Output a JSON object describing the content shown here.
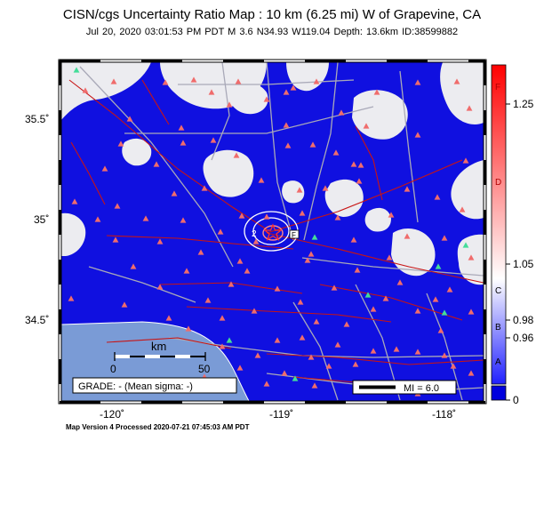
{
  "map": {
    "title": "CISN/cgs Uncertainty Ratio Map : 10 km (6.25 mi) W of Grapevine, CA",
    "subtitle": "Jul 20, 2020 03:01:53 PM PDT   M 3.6   N34.93 W119.04   Depth: 13.6km   ID:38599882",
    "footer": "Map Version 4 Processed 2020-07-21 07:45:03 AM PDT",
    "lat_labels": [
      "35.5˚",
      "35˚",
      "34.5˚"
    ],
    "lon_labels": [
      "-120˚",
      "-119˚",
      "-118˚"
    ],
    "scale_unit": "km",
    "scale_min": "0",
    "scale_max": "50",
    "grade_text": "GRADE: - (Mean sigma: -)",
    "mi_legend": "MI = 6.0",
    "contour_label": "2"
  },
  "colorbar": {
    "letters": [
      "F",
      "D",
      "C",
      "B",
      "A"
    ],
    "tick_labels": [
      "1.25",
      "1.05",
      "0.98",
      "0.96",
      "0"
    ]
  },
  "colors": {
    "blue": "#1010e0",
    "light_gray": "#ececf0",
    "ocean": "#7a9bd6",
    "fault": "#c81414",
    "road": "#a9a9b8",
    "station": "#f06c6c",
    "station_alt": "#44dd99"
  }
}
